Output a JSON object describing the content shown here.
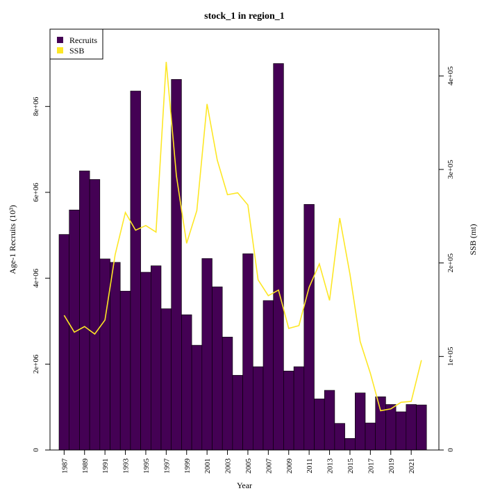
{
  "chart_data": {
    "type": "bar+line",
    "title": "stock_1 in region_1",
    "xlabel": "Year",
    "ylabel_left": "Age-1 Recruits (10³)",
    "ylabel_right": "SSB (mt)",
    "years": [
      1987,
      1988,
      1989,
      1990,
      1991,
      1992,
      1993,
      1994,
      1995,
      1996,
      1997,
      1998,
      1999,
      2000,
      2001,
      2002,
      2003,
      2004,
      2005,
      2006,
      2007,
      2008,
      2009,
      2010,
      2011,
      2012,
      2013,
      2014,
      2015,
      2016,
      2017,
      2018,
      2019,
      2020,
      2021,
      2022
    ],
    "x_tick_labels": [
      "1987",
      "1989",
      "1991",
      "1993",
      "1995",
      "1997",
      "1999",
      "2001",
      "2003",
      "2005",
      "2007",
      "2009",
      "2011",
      "2013",
      "2015",
      "2017",
      "2019",
      "2021"
    ],
    "left_axis": {
      "ylim": [
        0,
        9800000
      ],
      "ticks": [
        0,
        2000000,
        4000000,
        6000000,
        8000000
      ],
      "tick_labels": [
        "0",
        "2e+06",
        "4e+06",
        "6e+06",
        "8e+06"
      ]
    },
    "right_axis": {
      "ylim": [
        0,
        450000
      ],
      "ticks": [
        0,
        100000,
        200000,
        300000,
        400000
      ],
      "tick_labels": [
        "0",
        "1e+05",
        "2e+05",
        "3e+05",
        "4e+05"
      ]
    },
    "series": [
      {
        "name": "Recruits",
        "type": "bar",
        "axis": "left",
        "color": "#440154",
        "values": [
          5020000,
          5590000,
          6500000,
          6300000,
          4450000,
          4370000,
          3700000,
          8360000,
          4140000,
          4290000,
          3290000,
          8630000,
          3150000,
          2440000,
          4460000,
          3800000,
          2630000,
          1740000,
          4570000,
          1940000,
          3480000,
          9000000,
          1840000,
          1940000,
          5720000,
          1190000,
          1390000,
          620000,
          270000,
          1330000,
          630000,
          1240000,
          1060000,
          890000,
          1060000,
          1050000
        ]
      },
      {
        "name": "SSB",
        "type": "line",
        "axis": "right",
        "color": "#FDE725",
        "values": [
          144000,
          126000,
          132000,
          124000,
          139000,
          209000,
          254000,
          235000,
          240000,
          233000,
          415000,
          293000,
          221000,
          256000,
          370000,
          310000,
          273000,
          275000,
          262000,
          182000,
          165000,
          171000,
          130000,
          133000,
          174000,
          199000,
          160000,
          248000,
          188000,
          116000,
          82000,
          42000,
          44000,
          51000,
          52000,
          96000
        ]
      }
    ],
    "legend": {
      "position": "top-left",
      "entries": [
        {
          "label": "Recruits",
          "color": "#440154"
        },
        {
          "label": "SSB",
          "color": "#FDE725"
        }
      ]
    }
  }
}
